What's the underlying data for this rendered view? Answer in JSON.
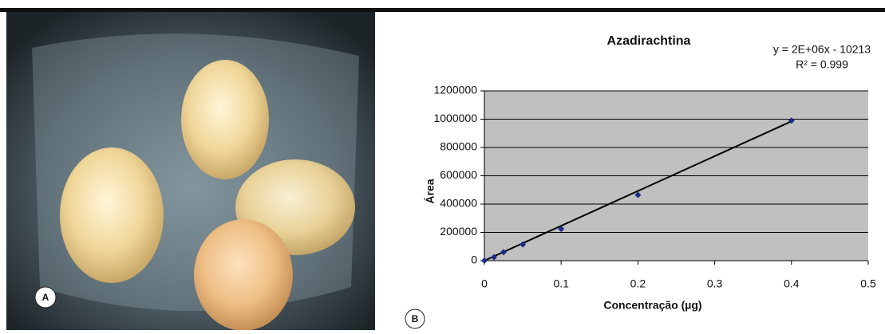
{
  "photo_label": "A",
  "chart_label": "B",
  "chart_data": {
    "type": "scatter",
    "title": "Azadirachtina",
    "annotations": [
      "y = 2E+06x - 10213",
      "R² = 0.999"
    ],
    "x_label": "Concentração (µg)",
    "y_label": "Área",
    "x": [
      0,
      0.0125,
      0.025,
      0.05,
      0.1,
      0.2,
      0.4
    ],
    "series": [
      {
        "color": "#1c2a8c",
        "values": [
          0,
          25000,
          60000,
          115000,
          225000,
          465000,
          990000
        ]
      }
    ],
    "trendline": {
      "color": "#000000",
      "x": [
        0,
        0.4
      ],
      "values": [
        0,
        985000
      ]
    },
    "xlim": [
      0,
      0.5
    ],
    "xticks": [
      0,
      0.1,
      0.2,
      0.3,
      0.4,
      0.5
    ],
    "ylim": [
      0,
      1200000
    ],
    "yticks": [
      0,
      200000,
      400000,
      600000,
      800000,
      1000000,
      1200000
    ],
    "grid": true,
    "plot_background": "#c0c0c0"
  }
}
